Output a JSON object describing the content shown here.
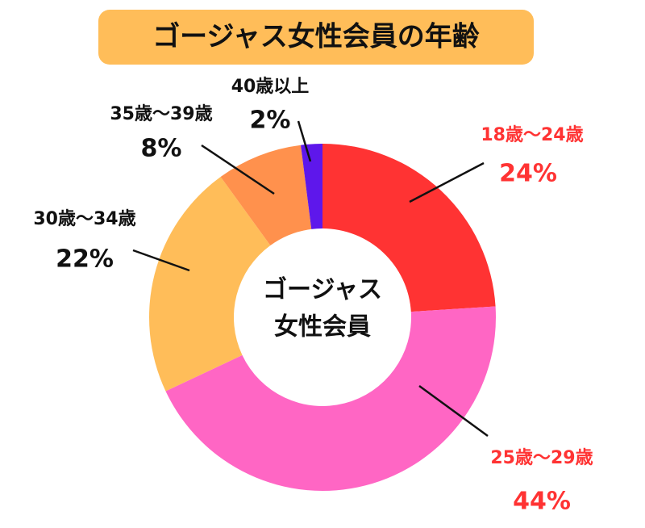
{
  "chart_data": {
    "type": "donut",
    "title": "ゴージャス女性会員の年齢",
    "center_text": [
      "ゴージャス",
      "女性会員"
    ],
    "categories": [
      "18歳〜24歳",
      "25歳〜29歳",
      "30歳〜34歳",
      "35歳〜39歳",
      "40歳以上"
    ],
    "values": [
      24,
      44,
      22,
      8,
      2
    ],
    "value_labels": [
      "24%",
      "44%",
      "22%",
      "8%",
      "2%"
    ],
    "colors": [
      "#ff3333",
      "#ff66c4",
      "#ffbd59",
      "#ff914d",
      "#5e17eb"
    ],
    "label_colors": [
      "#ff3333",
      "#ff3333",
      "#111111",
      "#111111",
      "#111111"
    ]
  }
}
